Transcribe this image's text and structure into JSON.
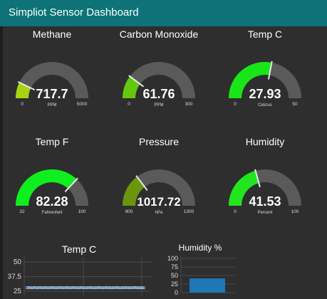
{
  "header": {
    "title": "Simpliot Sensor Dashboard"
  },
  "colors": {
    "header_bg": "#0d7377",
    "panel_bg": "#2e2e2e",
    "gauge_track": "#5a5a5a",
    "needle": "#e8e8e8",
    "bar_blue": "#1f77b4"
  },
  "gauges": [
    {
      "title": "Methane",
      "value": "717.7",
      "unit": "PPM",
      "min": "0",
      "max": "5000",
      "fraction": 0.1435,
      "color": "#a8d40f"
    },
    {
      "title": "Carbon Monoxide",
      "value": "61.76",
      "unit": "PPM",
      "min": "0",
      "max": "300",
      "fraction": 0.206,
      "color": "#64c80c"
    },
    {
      "title": "Temp C",
      "value": "27.93",
      "unit": "Celcius",
      "min": "0",
      "max": "50",
      "fraction": 0.5586,
      "color": "#19e619"
    },
    {
      "title": "Temp F",
      "value": "82.28",
      "unit": "Fahrenheit",
      "min": "32",
      "max": "100",
      "fraction": 0.739,
      "color": "#0fee1e"
    },
    {
      "title": "Pressure",
      "value": "1017.72",
      "unit": "hPa",
      "min": "900",
      "max": "1300",
      "fraction": 0.2943,
      "color": "#6a960c"
    },
    {
      "title": "Humidity",
      "value": "41.53",
      "unit": "Percent",
      "min": "0",
      "max": "100",
      "fraction": 0.4153,
      "color": "#21e61e"
    }
  ],
  "chart_data": [
    {
      "type": "line",
      "title": "Temp C",
      "yticks": [
        "50",
        "37.5",
        "25"
      ],
      "ylim": [
        25,
        50
      ],
      "series": [
        {
          "values": [
            28.0,
            28.1,
            27.9,
            28.0,
            28.2,
            28.0,
            27.9,
            28.1,
            28.0,
            28.0,
            28.1,
            27.9,
            28.0,
            28.0,
            28.1,
            28.0,
            27.9,
            28.0,
            28.1,
            28.0,
            28.0,
            27.9,
            28.1,
            28.0,
            28.0,
            28.0,
            28.1,
            27.9,
            28.0,
            28.0,
            28.1,
            28.0,
            27.9,
            28.0,
            28.0,
            28.1,
            28.0,
            27.9,
            28.0,
            28.0,
            28.1,
            28.0,
            27.9,
            28.0,
            28.1,
            28.0,
            28.0,
            27.9,
            28.0,
            28.0,
            28.1,
            28.0,
            27.9,
            28.0,
            28.0,
            28.1,
            28.0,
            27.9,
            28.0,
            28.0,
            28.1,
            28.0,
            27.9,
            28.0,
            28.0,
            27.93
          ]
        }
      ]
    },
    {
      "type": "bar",
      "title": "Humidity %",
      "yticks": [
        "100",
        "75",
        "50",
        "25",
        "0"
      ],
      "ylim": [
        0,
        100
      ],
      "values": [
        41.53
      ]
    }
  ]
}
